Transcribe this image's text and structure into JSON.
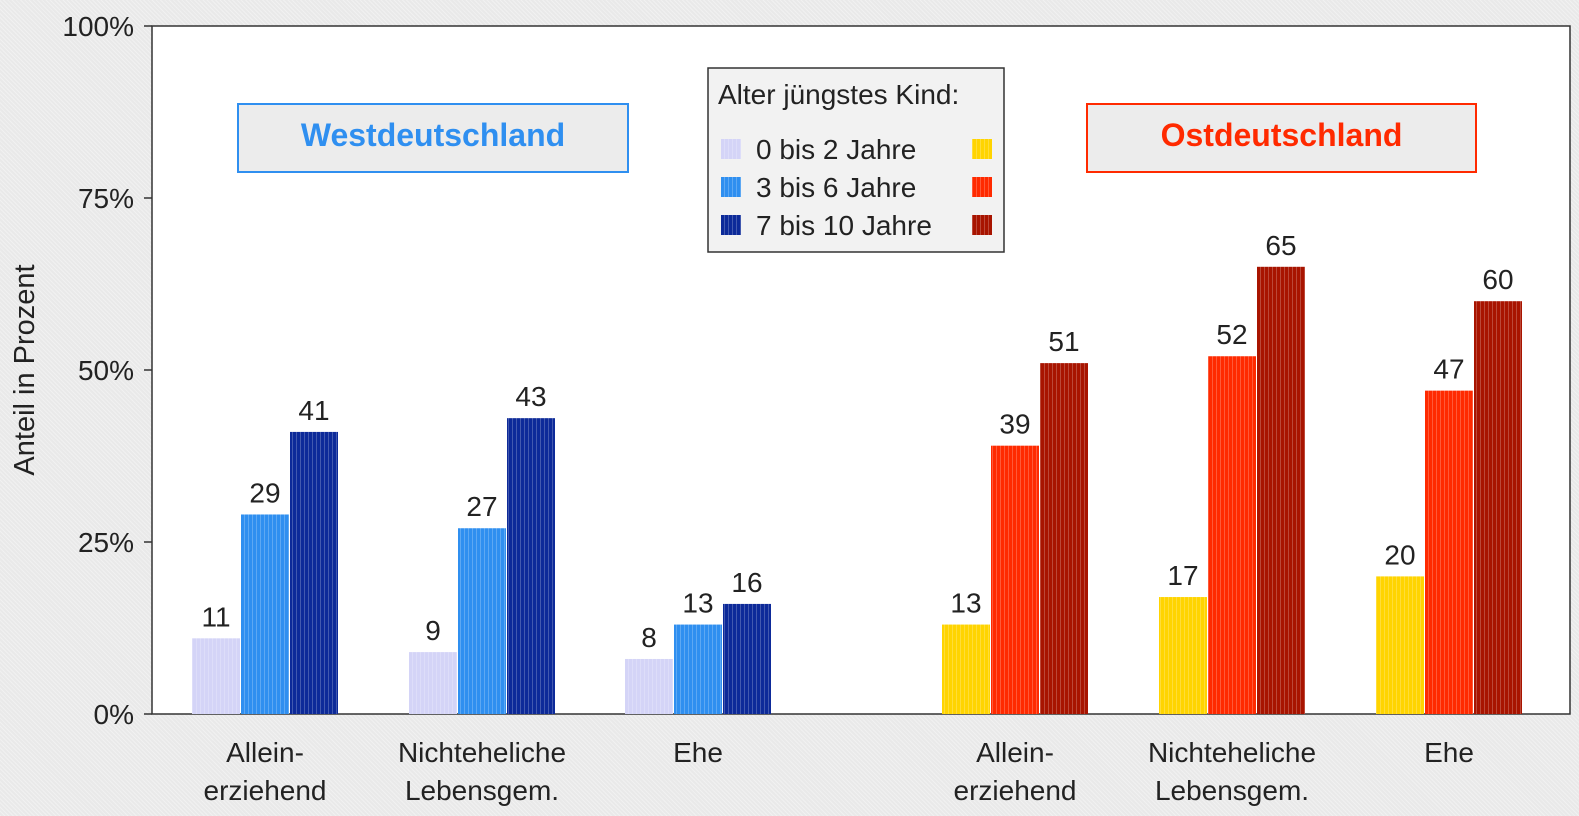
{
  "chart_data": {
    "type": "bar",
    "ylabel": "Anteil in Prozent",
    "ylim": [
      0,
      100
    ],
    "yticks": [
      "0%",
      "25%",
      "50%",
      "75%",
      "100%"
    ],
    "grid": false,
    "legend": {
      "title": "Alter jüngstes Kind:",
      "placement": "top-center",
      "entries": [
        "0 bis 2 Jahre",
        "3 bis 6 Jahre",
        "7 bis 10 Jahre"
      ]
    },
    "groups": [
      {
        "name": "Westdeutschland",
        "colors": [
          "#d4d4f7",
          "#2f8ff0",
          "#0d2a99"
        ],
        "categories": [
          {
            "label": [
              "Allein-",
              "erziehend"
            ],
            "values": [
              11,
              29,
              41
            ]
          },
          {
            "label": [
              "Nichteheliche",
              "Lebensgem."
            ],
            "values": [
              9,
              27,
              43
            ]
          },
          {
            "label": [
              "Ehe"
            ],
            "values": [
              8,
              13,
              16
            ]
          }
        ]
      },
      {
        "name": "Ostdeutschland",
        "colors": [
          "#ffd400",
          "#ff2a00",
          "#a81400"
        ],
        "categories": [
          {
            "label": [
              "Allein-",
              "erziehend"
            ],
            "values": [
              13,
              39,
              51
            ]
          },
          {
            "label": [
              "Nichteheliche",
              "Lebensgem."
            ],
            "values": [
              17,
              52,
              65
            ]
          },
          {
            "label": [
              "Ehe"
            ],
            "values": [
              20,
              47,
              60
            ]
          }
        ]
      }
    ],
    "group_label_colors": [
      "#2f8ff0",
      "#ff2a00"
    ]
  }
}
